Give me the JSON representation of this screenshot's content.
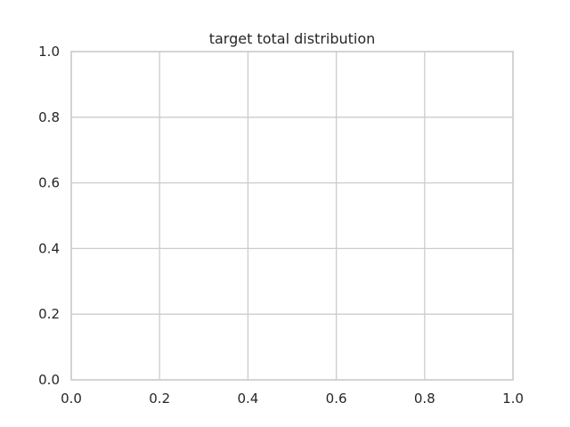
{
  "chart_data": {
    "type": "line",
    "title": "target total distribution",
    "xlabel": "",
    "ylabel": "",
    "xlim": [
      0.0,
      1.0
    ],
    "ylim": [
      0.0,
      1.0
    ],
    "xticks": [
      0.0,
      0.2,
      0.4,
      0.6,
      0.8,
      1.0
    ],
    "yticks": [
      0.0,
      0.2,
      0.4,
      0.6,
      0.8,
      1.0
    ],
    "x_tick_labels": [
      "0.0",
      "0.2",
      "0.4",
      "0.6",
      "0.8",
      "1.0"
    ],
    "y_tick_labels": [
      "0.0",
      "0.2",
      "0.4",
      "0.6",
      "0.8",
      "1.0"
    ],
    "series": [],
    "grid": true,
    "legend": false
  },
  "colors": {
    "background": "#ffffff",
    "grid": "#cccccc",
    "text": "#262626"
  }
}
